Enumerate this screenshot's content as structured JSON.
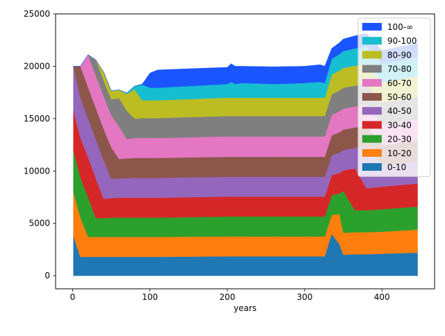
{
  "chart_data": {
    "type": "area",
    "title": "",
    "xlabel": "years",
    "ylabel": "",
    "xlim": [
      -22,
      468
    ],
    "ylim": [
      -1250,
      25000
    ],
    "x_ticks": [
      0,
      100,
      200,
      300,
      400
    ],
    "y_ticks": [
      0,
      5000,
      10000,
      15000,
      20000,
      25000
    ],
    "x_tick_labels": [
      "0",
      "100",
      "200",
      "300",
      "400"
    ],
    "y_tick_labels": [
      "0",
      "5000",
      "10000",
      "15000",
      "20000",
      "25000"
    ],
    "grid": false,
    "legend_position": "top-right",
    "x": [
      1,
      10,
      20,
      30,
      40,
      50,
      60,
      70,
      80,
      90,
      100,
      110,
      200,
      205,
      210,
      220,
      260,
      300,
      320,
      326,
      335,
      345,
      350,
      365,
      380,
      400,
      446
    ],
    "series": [
      {
        "name": "0-10",
        "color": "#1f77b4",
        "values": [
          3800,
          1800,
          1800,
          1800,
          1800,
          1800,
          1800,
          1800,
          1800,
          1800,
          1800,
          1800,
          1850,
          1850,
          1850,
          1850,
          1850,
          1850,
          1850,
          1850,
          4000,
          3000,
          2000,
          2050,
          2050,
          2100,
          2200
        ]
      },
      {
        "name": "10-20",
        "color": "#ff7f0e",
        "values": [
          4200,
          3800,
          1900,
          1900,
          1900,
          1900,
          1900,
          1900,
          1900,
          1900,
          1900,
          1900,
          1900,
          1900,
          1900,
          1900,
          1900,
          1900,
          1900,
          1900,
          1800,
          2900,
          2100,
          2100,
          2100,
          2100,
          2200
        ]
      },
      {
        "name": "20-30",
        "color": "#2ca02c",
        "values": [
          4000,
          3800,
          3800,
          1800,
          1800,
          1850,
          1850,
          1850,
          1850,
          1850,
          1850,
          1850,
          1900,
          1900,
          1900,
          1900,
          1900,
          1900,
          1900,
          1900,
          1900,
          1950,
          4000,
          2100,
          2100,
          2150,
          2200
        ]
      },
      {
        "name": "30-40",
        "color": "#d62728",
        "values": [
          3800,
          3800,
          3800,
          3800,
          1850,
          1850,
          1900,
          1900,
          1900,
          1900,
          1900,
          1900,
          1900,
          1900,
          1900,
          1900,
          1900,
          1900,
          1900,
          1900,
          1900,
          1950,
          1950,
          4000,
          2100,
          2150,
          2200
        ]
      },
      {
        "name": "40-50",
        "color": "#9467bd",
        "values": [
          4200,
          3800,
          3700,
          3700,
          3700,
          1850,
          1850,
          1850,
          1900,
          1900,
          1900,
          1900,
          1900,
          1900,
          1900,
          1900,
          1900,
          1900,
          1900,
          1900,
          1900,
          1950,
          1950,
          1950,
          4000,
          2000,
          2100
        ]
      },
      {
        "name": "50-60",
        "color": "#8c564b",
        "values": [
          0,
          3000,
          3000,
          3000,
          3000,
          3000,
          1850,
          1900,
          1900,
          1900,
          1900,
          1900,
          1900,
          1900,
          1900,
          1900,
          1900,
          1900,
          1900,
          1900,
          1900,
          1950,
          1950,
          1950,
          1950,
          1950,
          2000
        ]
      },
      {
        "name": "60-70",
        "color": "#e377c2",
        "values": [
          0,
          0,
          3100,
          3100,
          3100,
          3100,
          3100,
          1850,
          1900,
          1900,
          1900,
          1900,
          1950,
          1950,
          1950,
          1950,
          1950,
          1950,
          1950,
          1950,
          1950,
          2000,
          2000,
          2000,
          2000,
          2000,
          2050
        ]
      },
      {
        "name": "70-80",
        "color": "#7f7f7f",
        "values": [
          0,
          0,
          0,
          1500,
          1500,
          1500,
          2700,
          2700,
          1850,
          1900,
          1900,
          1900,
          1950,
          1950,
          1950,
          1950,
          1950,
          1950,
          1950,
          1950,
          1950,
          2000,
          2000,
          2000,
          2000,
          2050,
          2100
        ]
      },
      {
        "name": "80-90",
        "color": "#bcbd22",
        "values": [
          0,
          0,
          0,
          0,
          800,
          800,
          800,
          1600,
          2800,
          1700,
          1700,
          1700,
          1750,
          1750,
          1750,
          1750,
          1750,
          1750,
          1750,
          1750,
          1900,
          1900,
          1900,
          1900,
          1900,
          1950,
          2000
        ]
      },
      {
        "name": "90-100",
        "color": "#17becf",
        "values": [
          0,
          0,
          0,
          0,
          0,
          0,
          0,
          100,
          300,
          1500,
          1200,
          1200,
          1300,
          1500,
          1300,
          1400,
          1300,
          1400,
          1500,
          1400,
          1500,
          1550,
          1600,
          1650,
          1700,
          1750,
          1800
        ]
      },
      {
        "name": "100-∞",
        "color": "#1a55ff",
        "values": [
          0,
          0,
          0,
          0,
          0,
          0,
          0,
          0,
          0,
          50,
          1400,
          1700,
          1600,
          1750,
          1700,
          1600,
          1650,
          1600,
          1650,
          1600,
          1000,
          1100,
          1150,
          1200,
          1250,
          1300,
          1350
        ]
      }
    ]
  }
}
